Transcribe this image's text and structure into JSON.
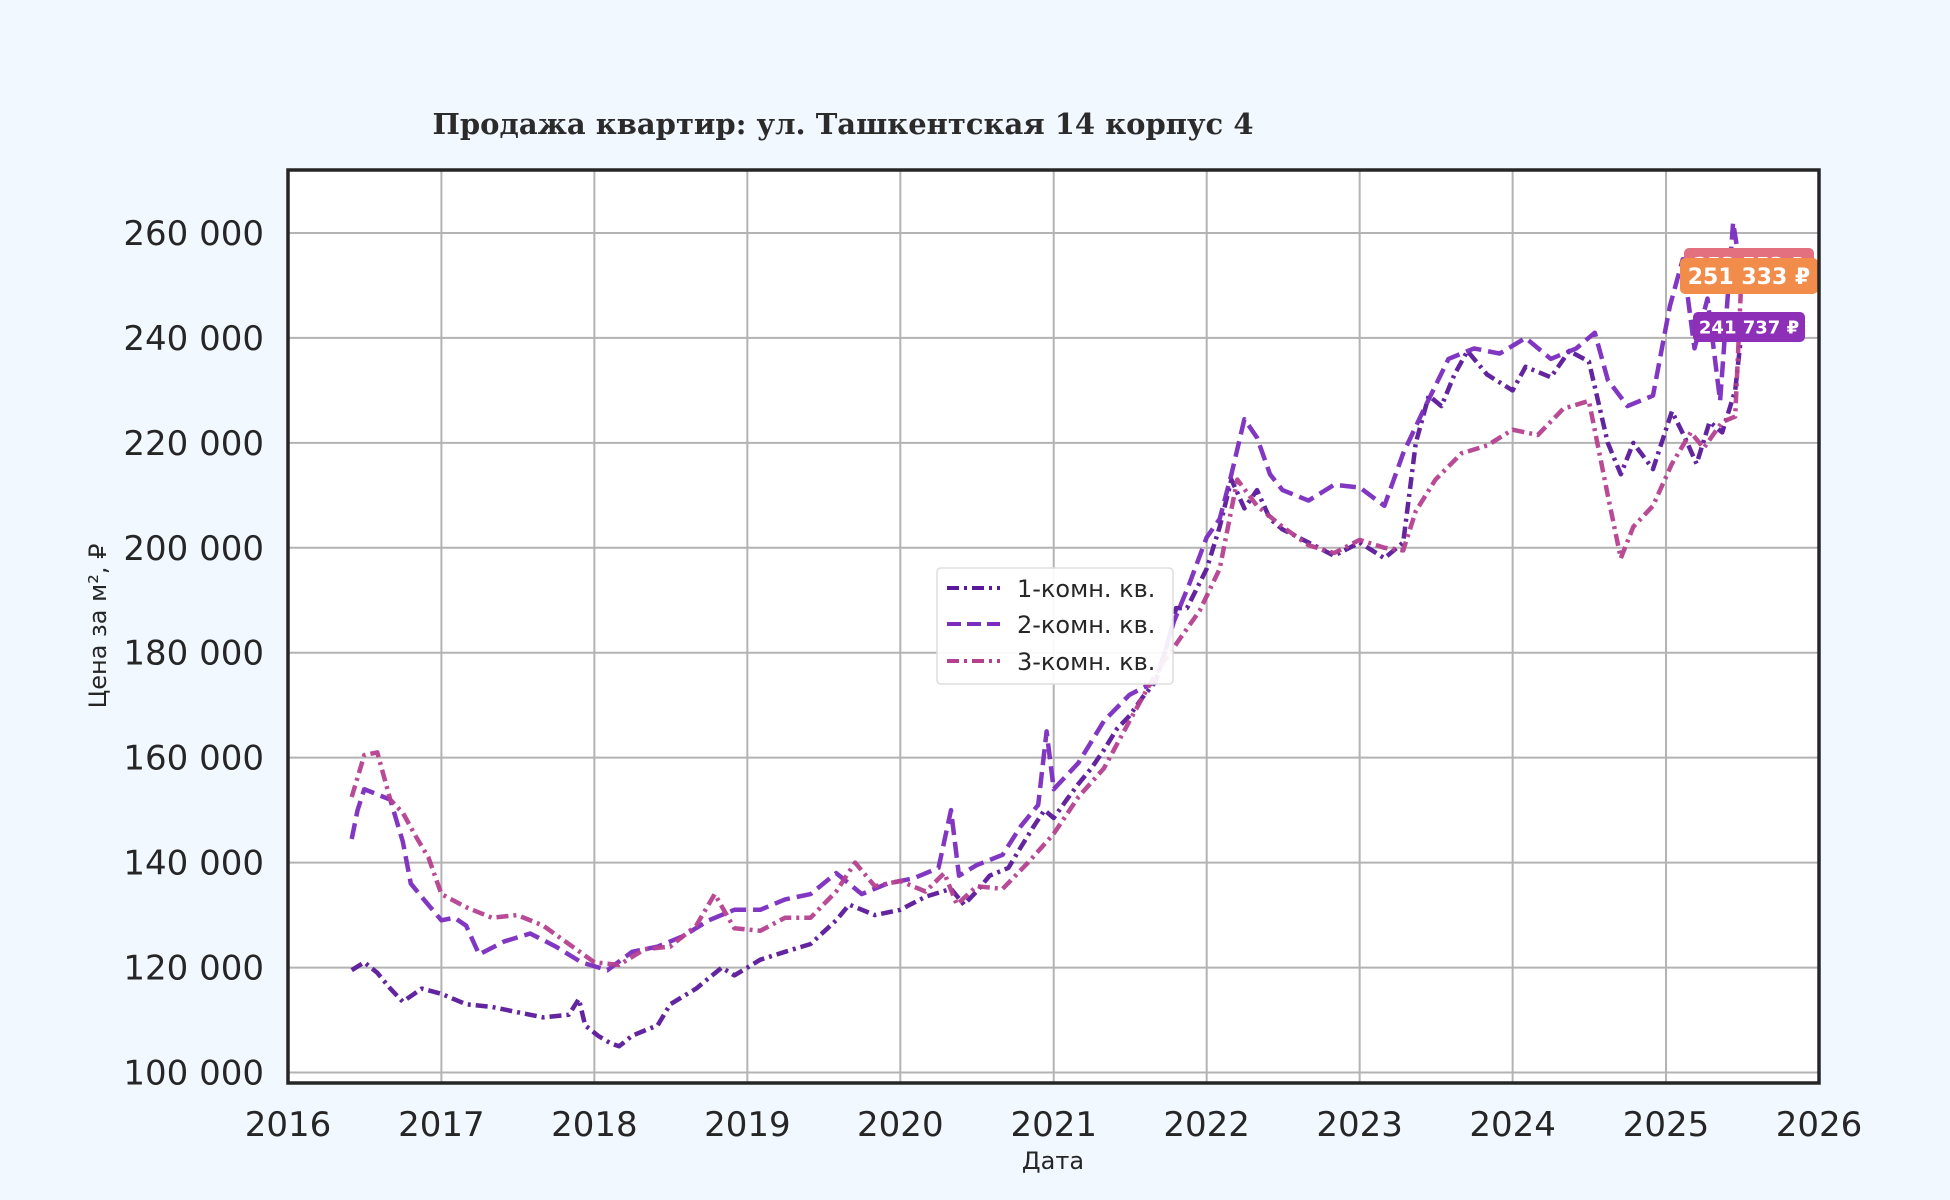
{
  "chart_data": {
    "type": "line",
    "title": "Продажа квартир: ул. Ташкентская 14 корпус 4",
    "xlabel": "Дата",
    "ylabel": "Цена за м², ₽",
    "xlim": [
      "2016-01-01",
      "2026-01-01"
    ],
    "ylim": [
      98000,
      272000
    ],
    "x_ticks": [
      "2016",
      "2017",
      "2018",
      "2019",
      "2020",
      "2021",
      "2022",
      "2023",
      "2024",
      "2025",
      "2026"
    ],
    "y_ticks": [
      "100 000",
      "120 000",
      "140 000",
      "160 000",
      "180 000",
      "200 000",
      "220 000",
      "240 000",
      "260 000"
    ],
    "y_tick_values": [
      100000,
      120000,
      140000,
      160000,
      180000,
      200000,
      220000,
      240000,
      260000
    ],
    "grid": true,
    "legend_position": "center",
    "series": [
      {
        "name": "1-комн. кв.",
        "color": "#5a189a",
        "dash": "dashdot",
        "points": [
          [
            "2016-06-01",
            119500
          ],
          [
            "2016-07-01",
            121000
          ],
          [
            "2016-08-01",
            119000
          ],
          [
            "2016-09-01",
            116000
          ],
          [
            "2016-10-01",
            113500
          ],
          [
            "2016-11-15",
            116000
          ],
          [
            "2017-01-01",
            115000
          ],
          [
            "2017-03-01",
            113000
          ],
          [
            "2017-05-01",
            112500
          ],
          [
            "2017-07-01",
            111500
          ],
          [
            "2017-09-01",
            110500
          ],
          [
            "2017-11-01",
            111000
          ],
          [
            "2017-11-25",
            114000
          ],
          [
            "2017-12-10",
            109000
          ],
          [
            "2018-01-10",
            107000
          ],
          [
            "2018-02-10",
            105500
          ],
          [
            "2018-03-01",
            105000
          ],
          [
            "2018-04-01",
            107000
          ],
          [
            "2018-05-01",
            108000
          ],
          [
            "2018-06-01",
            109000
          ],
          [
            "2018-07-01",
            113000
          ],
          [
            "2018-08-01",
            114500
          ],
          [
            "2018-09-01",
            116000
          ],
          [
            "2018-10-01",
            118000
          ],
          [
            "2018-11-01",
            120000
          ],
          [
            "2018-12-01",
            118500
          ],
          [
            "2019-01-01",
            120000
          ],
          [
            "2019-02-01",
            121500
          ],
          [
            "2019-04-01",
            123000
          ],
          [
            "2019-06-01",
            124500
          ],
          [
            "2019-08-01",
            129000
          ],
          [
            "2019-09-01",
            132000
          ],
          [
            "2019-11-01",
            130000
          ],
          [
            "2020-01-01",
            131000
          ],
          [
            "2020-03-01",
            133500
          ],
          [
            "2020-05-01",
            135000
          ],
          [
            "2020-06-01",
            132000
          ],
          [
            "2020-07-01",
            134500
          ],
          [
            "2020-08-01",
            137500
          ],
          [
            "2020-09-15",
            139000
          ],
          [
            "2020-10-15",
            143000
          ],
          [
            "2020-11-15",
            147000
          ],
          [
            "2020-12-10",
            150000
          ],
          [
            "2021-01-01",
            148500
          ],
          [
            "2021-02-01",
            152000
          ],
          [
            "2021-03-01",
            155000
          ],
          [
            "2021-04-01",
            158000
          ],
          [
            "2021-05-01",
            161500
          ],
          [
            "2021-06-01",
            165500
          ],
          [
            "2021-07-01",
            168000
          ],
          [
            "2021-08-01",
            171500
          ],
          [
            "2021-09-01",
            174500
          ],
          [
            "2021-10-01",
            182000
          ],
          [
            "2021-10-20",
            188500
          ],
          [
            "2021-11-15",
            188500
          ],
          [
            "2022-01-01",
            196000
          ],
          [
            "2022-02-01",
            204000
          ],
          [
            "2022-03-01",
            213000
          ],
          [
            "2022-04-01",
            207500
          ],
          [
            "2022-05-01",
            211000
          ],
          [
            "2022-06-01",
            205500
          ],
          [
            "2022-07-01",
            203500
          ],
          [
            "2022-09-01",
            201000
          ],
          [
            "2022-11-01",
            198500
          ],
          [
            "2023-01-01",
            201000
          ],
          [
            "2023-03-01",
            198000
          ],
          [
            "2023-04-15",
            201000
          ],
          [
            "2023-05-15",
            220000
          ],
          [
            "2023-06-15",
            229000
          ],
          [
            "2023-07-15",
            227000
          ],
          [
            "2023-08-15",
            233000
          ],
          [
            "2023-09-15",
            237500
          ],
          [
            "2023-11-01",
            233000
          ],
          [
            "2024-01-01",
            230000
          ],
          [
            "2024-02-01",
            234500
          ],
          [
            "2024-04-01",
            232500
          ],
          [
            "2024-05-15",
            237500
          ],
          [
            "2024-07-01",
            235500
          ],
          [
            "2024-08-15",
            220000
          ],
          [
            "2024-09-15",
            214000
          ],
          [
            "2024-10-15",
            220000
          ],
          [
            "2024-12-01",
            215000
          ],
          [
            "2025-01-15",
            226000
          ],
          [
            "2025-02-15",
            221000
          ],
          [
            "2025-03-15",
            216000
          ],
          [
            "2025-04-15",
            224000
          ],
          [
            "2025-05-15",
            222000
          ],
          [
            "2025-06-15",
            230000
          ],
          [
            "2025-07-01",
            241737
          ]
        ],
        "end_label": "241 737 ₽",
        "end_value": 241737
      },
      {
        "name": "2-комн. кв.",
        "color": "#7b2cbf",
        "dash": "dashed",
        "points": [
          [
            "2016-06-01",
            144500
          ],
          [
            "2016-06-15",
            150000
          ],
          [
            "2016-07-01",
            154000
          ],
          [
            "2016-08-01",
            153000
          ],
          [
            "2016-09-01",
            152000
          ],
          [
            "2016-10-01",
            144000
          ],
          [
            "2016-10-20",
            136000
          ],
          [
            "2016-11-20",
            133000
          ],
          [
            "2017-01-01",
            129000
          ],
          [
            "2017-02-01",
            129500
          ],
          [
            "2017-03-01",
            128000
          ],
          [
            "2017-04-01",
            122500
          ],
          [
            "2017-06-01",
            125000
          ],
          [
            "2017-08-01",
            126500
          ],
          [
            "2017-10-01",
            124000
          ],
          [
            "2017-12-01",
            121000
          ],
          [
            "2018-02-01",
            119500
          ],
          [
            "2018-04-01",
            123000
          ],
          [
            "2018-06-01",
            124000
          ],
          [
            "2018-08-01",
            126000
          ],
          [
            "2018-10-01",
            129000
          ],
          [
            "2018-12-01",
            131000
          ],
          [
            "2019-02-01",
            131000
          ],
          [
            "2019-04-01",
            133000
          ],
          [
            "2019-06-01",
            134000
          ],
          [
            "2019-08-01",
            138000
          ],
          [
            "2019-10-01",
            134000
          ],
          [
            "2019-12-01",
            136000
          ],
          [
            "2020-02-01",
            137000
          ],
          [
            "2020-04-01",
            139000
          ],
          [
            "2020-05-01",
            150000
          ],
          [
            "2020-05-20",
            137500
          ],
          [
            "2020-07-01",
            139500
          ],
          [
            "2020-09-01",
            141500
          ],
          [
            "2020-10-15",
            147000
          ],
          [
            "2020-11-25",
            151000
          ],
          [
            "2020-12-15",
            165000
          ],
          [
            "2021-01-01",
            154000
          ],
          [
            "2021-03-01",
            159000
          ],
          [
            "2021-05-01",
            167000
          ],
          [
            "2021-07-01",
            172000
          ],
          [
            "2021-09-01",
            174500
          ],
          [
            "2021-10-15",
            186000
          ],
          [
            "2021-11-20",
            193000
          ],
          [
            "2022-01-01",
            202000
          ],
          [
            "2022-02-01",
            205500
          ],
          [
            "2022-03-01",
            214000
          ],
          [
            "2022-04-01",
            224500
          ],
          [
            "2022-05-01",
            221000
          ],
          [
            "2022-06-01",
            214000
          ],
          [
            "2022-07-01",
            211000
          ],
          [
            "2022-09-01",
            209000
          ],
          [
            "2022-11-01",
            212000
          ],
          [
            "2023-01-01",
            211500
          ],
          [
            "2023-03-01",
            208000
          ],
          [
            "2023-04-15",
            218000
          ],
          [
            "2023-06-01",
            226000
          ],
          [
            "2023-08-01",
            236000
          ],
          [
            "2023-10-01",
            238000
          ],
          [
            "2023-12-01",
            237000
          ],
          [
            "2024-02-01",
            240000
          ],
          [
            "2024-04-01",
            236000
          ],
          [
            "2024-06-01",
            238000
          ],
          [
            "2024-07-15",
            241000
          ],
          [
            "2024-08-15",
            232000
          ],
          [
            "2024-10-01",
            227000
          ],
          [
            "2024-12-01",
            229000
          ],
          [
            "2025-01-10",
            246000
          ],
          [
            "2025-02-10",
            255000
          ],
          [
            "2025-03-10",
            238000
          ],
          [
            "2025-04-10",
            247500
          ],
          [
            "2025-05-10",
            228000
          ],
          [
            "2025-06-10",
            262000
          ],
          [
            "2025-07-01",
            251333
          ]
        ],
        "end_label": "251 333 ₽",
        "end_value": 251333
      },
      {
        "name": "3-комн. кв.",
        "color": "#b5408f",
        "dash": "dashdot",
        "points": [
          [
            "2016-06-01",
            152500
          ],
          [
            "2016-07-01",
            160500
          ],
          [
            "2016-08-01",
            161000
          ],
          [
            "2016-09-01",
            152000
          ],
          [
            "2016-10-01",
            149500
          ],
          [
            "2016-11-01",
            145000
          ],
          [
            "2016-12-01",
            141000
          ],
          [
            "2017-01-01",
            134000
          ],
          [
            "2017-03-01",
            131500
          ],
          [
            "2017-05-01",
            129500
          ],
          [
            "2017-07-01",
            130000
          ],
          [
            "2017-09-01",
            128000
          ],
          [
            "2017-11-01",
            124500
          ],
          [
            "2018-01-01",
            121000
          ],
          [
            "2018-03-01",
            120500
          ],
          [
            "2018-05-01",
            123500
          ],
          [
            "2018-07-01",
            124000
          ],
          [
            "2018-09-01",
            128000
          ],
          [
            "2018-10-15",
            134000
          ],
          [
            "2018-12-01",
            127500
          ],
          [
            "2019-02-01",
            127000
          ],
          [
            "2019-04-01",
            129500
          ],
          [
            "2019-06-01",
            129500
          ],
          [
            "2019-08-01",
            134500
          ],
          [
            "2019-09-15",
            140000
          ],
          [
            "2019-11-01",
            135500
          ],
          [
            "2020-01-01",
            136500
          ],
          [
            "2020-03-01",
            134500
          ],
          [
            "2020-04-15",
            138000
          ],
          [
            "2020-05-15",
            132000
          ],
          [
            "2020-07-01",
            135500
          ],
          [
            "2020-09-01",
            135000
          ],
          [
            "2020-11-01",
            140000
          ],
          [
            "2021-01-01",
            145500
          ],
          [
            "2021-03-01",
            152500
          ],
          [
            "2021-05-01",
            158000
          ],
          [
            "2021-07-01",
            167000
          ],
          [
            "2021-09-01",
            176000
          ],
          [
            "2021-11-01",
            183000
          ],
          [
            "2021-12-15",
            188000
          ],
          [
            "2022-02-01",
            196000
          ],
          [
            "2022-03-15",
            213000
          ],
          [
            "2022-05-01",
            208000
          ],
          [
            "2022-07-01",
            204000
          ],
          [
            "2022-09-01",
            200500
          ],
          [
            "2022-11-01",
            199000
          ],
          [
            "2023-01-01",
            201500
          ],
          [
            "2023-03-01",
            200000
          ],
          [
            "2023-04-15",
            199500
          ],
          [
            "2023-05-15",
            207000
          ],
          [
            "2023-07-01",
            213000
          ],
          [
            "2023-09-01",
            218000
          ],
          [
            "2023-11-01",
            219500
          ],
          [
            "2024-01-01",
            222500
          ],
          [
            "2024-03-01",
            221500
          ],
          [
            "2024-05-01",
            226500
          ],
          [
            "2024-07-01",
            228000
          ],
          [
            "2024-08-15",
            210000
          ],
          [
            "2024-09-15",
            198000
          ],
          [
            "2024-10-15",
            204000
          ],
          [
            "2024-12-01",
            208000
          ],
          [
            "2025-01-15",
            216000
          ],
          [
            "2025-03-01",
            222000
          ],
          [
            "2025-04-01",
            219000
          ],
          [
            "2025-05-15",
            224000
          ],
          [
            "2025-06-15",
            225000
          ],
          [
            "2025-07-01",
            253553
          ]
        ],
        "end_label": "253 553 ₽",
        "end_value": 253553
      }
    ]
  }
}
